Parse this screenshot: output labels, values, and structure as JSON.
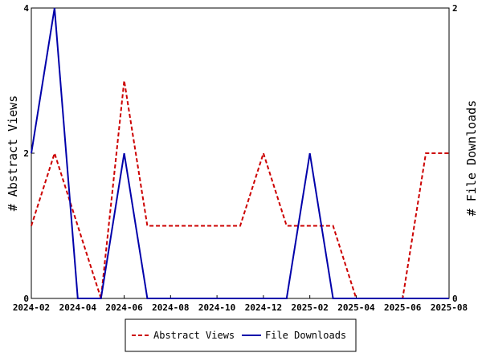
{
  "chart_data": {
    "type": "line",
    "x_ticks": [
      "2024-02",
      "2024-04",
      "2024-06",
      "2024-08",
      "2024-10",
      "2024-12",
      "2025-02",
      "2025-04",
      "2025-06",
      "2025-08"
    ],
    "x_range": [
      "2024-02",
      "2025-08"
    ],
    "y_left": {
      "label": "# Abstract Views",
      "range": [
        0,
        4
      ],
      "ticks": [
        "0",
        "2",
        "4"
      ]
    },
    "y_right": {
      "label": "# File Downloads",
      "range": [
        0,
        2
      ],
      "ticks": [
        "0",
        "2"
      ]
    },
    "series": [
      {
        "name": "Abstract Views",
        "axis": "left",
        "color": "#cc0000",
        "style": "dashed",
        "points": [
          {
            "x": "2024-02",
            "y": 1
          },
          {
            "x": "2024-03",
            "y": 2
          },
          {
            "x": "2024-04",
            "y": 1
          },
          {
            "x": "2024-05",
            "y": 0
          },
          {
            "x": "2024-06",
            "y": 3
          },
          {
            "x": "2024-07",
            "y": 1
          },
          {
            "x": "2024-08",
            "y": 1
          },
          {
            "x": "2024-09",
            "y": 1
          },
          {
            "x": "2024-10",
            "y": 1
          },
          {
            "x": "2024-11",
            "y": 1
          },
          {
            "x": "2024-12",
            "y": 2
          },
          {
            "x": "2025-01",
            "y": 1
          },
          {
            "x": "2025-02",
            "y": 1
          },
          {
            "x": "2025-03",
            "y": 1
          },
          {
            "x": "2025-04",
            "y": 0
          },
          {
            "x": "2025-05",
            "y": 0
          },
          {
            "x": "2025-06",
            "y": 0
          },
          {
            "x": "2025-07",
            "y": 2
          },
          {
            "x": "2025-08",
            "y": 2
          }
        ]
      },
      {
        "name": "File Downloads",
        "axis": "right",
        "color": "#0000aa",
        "style": "solid",
        "points": [
          {
            "x": "2024-02",
            "y": 1
          },
          {
            "x": "2024-03",
            "y": 2
          },
          {
            "x": "2024-04",
            "y": 0
          },
          {
            "x": "2024-05",
            "y": 0
          },
          {
            "x": "2024-06",
            "y": 1
          },
          {
            "x": "2024-07",
            "y": 0
          },
          {
            "x": "2024-08",
            "y": 0
          },
          {
            "x": "2024-09",
            "y": 0
          },
          {
            "x": "2024-10",
            "y": 0
          },
          {
            "x": "2024-11",
            "y": 0
          },
          {
            "x": "2024-12",
            "y": 0
          },
          {
            "x": "2025-01",
            "y": 0
          },
          {
            "x": "2025-02",
            "y": 1
          },
          {
            "x": "2025-03",
            "y": 0
          },
          {
            "x": "2025-04",
            "y": 0
          },
          {
            "x": "2025-05",
            "y": 0
          },
          {
            "x": "2025-06",
            "y": 0
          },
          {
            "x": "2025-07",
            "y": 0
          },
          {
            "x": "2025-08",
            "y": 0
          }
        ]
      }
    ],
    "legend": {
      "placement": "bottom",
      "entries": [
        "Abstract Views",
        "File Downloads"
      ]
    },
    "grid": false
  }
}
